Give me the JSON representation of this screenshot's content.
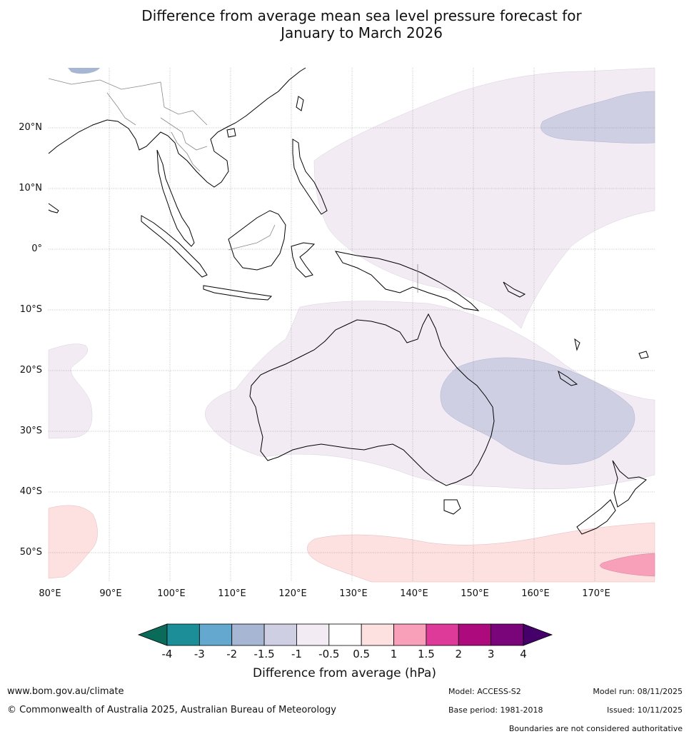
{
  "title": {
    "line1": "Difference from average mean sea level pressure forecast for",
    "line2": "January to March 2026"
  },
  "map": {
    "lat_labels": [
      "20°N",
      "10°N",
      "0°",
      "10°S",
      "20°S",
      "30°S",
      "40°S",
      "50°S"
    ],
    "lon_labels": [
      "80°E",
      "90°E",
      "100°E",
      "110°E",
      "120°E",
      "130°E",
      "140°E",
      "150°E",
      "160°E",
      "170°E"
    ]
  },
  "legend": {
    "title": "Difference from average (hPa)",
    "ticks": [
      "-4",
      "-3",
      "-2",
      "-1.5",
      "-1",
      "-0.5",
      "0.5",
      "1",
      "1.5",
      "2",
      "3",
      "4"
    ],
    "colors": [
      "#1b8e98",
      "#64a8d0",
      "#a7b7d3",
      "#cfcfe4",
      "#f2ebf4",
      "#ffffff",
      "#fde0e0",
      "#f8a0ba",
      "#dd3a9a",
      "#ad0a7e",
      "#7a0479"
    ],
    "under_color": "#0b6b5a",
    "over_color": "#46006a"
  },
  "footer": {
    "website": "www.bom.gov.au/climate",
    "copyright": "© Commonwealth of Australia 2025, Australian Bureau of Meteorology",
    "model": "Model: ACCESS-S2",
    "base_period": "Base period: 1981-2018",
    "model_run": "Model run: 08/11/2025",
    "issued": "Issued: 10/11/2025",
    "disclaimer": "Boundaries are not considered authoritative"
  }
}
